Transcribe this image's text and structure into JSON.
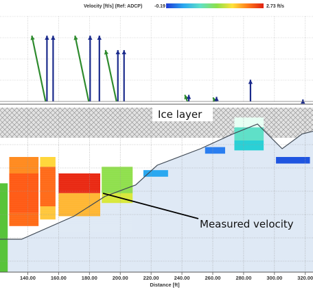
{
  "header": {
    "title": "Velocity [ft/s] (Ref: ADCP)",
    "min_label": "-0.19",
    "max_label": "2.73 ft/s"
  },
  "chart_data": {
    "type": "heatmap",
    "xlabel": "Distance [ft]",
    "xlim": [
      122,
      325
    ],
    "x_ticks": [
      "140.00",
      "160.00",
      "180.00",
      "200.00",
      "220.00",
      "240.00",
      "260.00",
      "280.00",
      "300.00",
      "320.00"
    ],
    "x_tick_values": [
      140,
      160,
      180,
      200,
      220,
      240,
      260,
      280,
      300,
      320
    ],
    "velocity_range": [
      -0.19,
      2.73
    ],
    "colormap": [
      "#1f3bd6",
      "#2aa8f0",
      "#5fe0c8",
      "#8de04a",
      "#ffe23a",
      "#ff7a1a",
      "#e02010"
    ],
    "annotations": {
      "ice": "Ice layer",
      "measured": "Measured velocity"
    },
    "vectors": [
      {
        "x": 148,
        "blue": 1.0,
        "green": 1.0
      },
      {
        "x": 152,
        "blue": 1.0
      },
      {
        "x": 176,
        "blue": 1.0,
        "green": 1.0
      },
      {
        "x": 182,
        "blue": 1.0
      },
      {
        "x": 194,
        "blue": 0.78,
        "green": 0.78
      },
      {
        "x": 198,
        "blue": 0.78
      },
      {
        "x": 240,
        "blue": 0.1,
        "green": 0.1
      },
      {
        "x": 258,
        "blue": 0.07,
        "green": 0.06
      },
      {
        "x": 280,
        "blue": 0.33
      },
      {
        "x": 314,
        "blue": 0.03
      }
    ],
    "bed_profile": [
      {
        "x": 122,
        "y": -4.0
      },
      {
        "x": 136,
        "y": -4.0
      },
      {
        "x": 170,
        "y": -3.3
      },
      {
        "x": 190,
        "y": -2.7
      },
      {
        "x": 210,
        "y": -2.35
      },
      {
        "x": 224,
        "y": -1.75
      },
      {
        "x": 252,
        "y": -1.25
      },
      {
        "x": 273,
        "y": -0.8
      },
      {
        "x": 289,
        "y": -0.5
      },
      {
        "x": 305,
        "y": -1.25
      },
      {
        "x": 318,
        "y": -0.8
      },
      {
        "x": 325,
        "y": -0.72
      }
    ]
  }
}
